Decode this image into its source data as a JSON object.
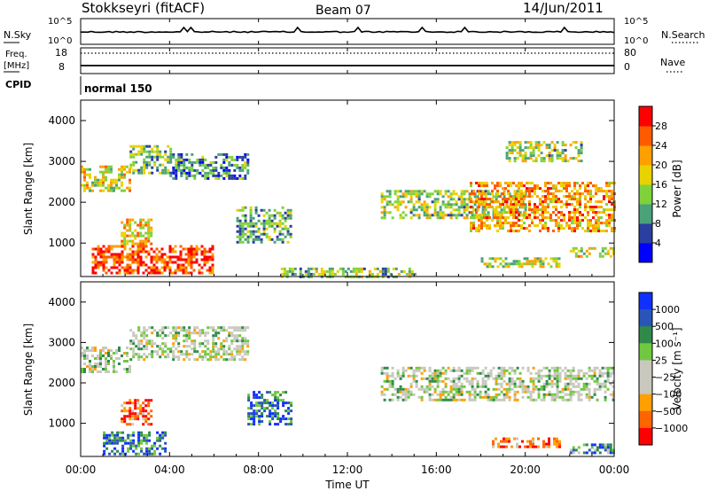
{
  "header": {
    "station": "Stokkseyri (fitACF)",
    "beam": "Beam 07",
    "date": "14/Jun/2011"
  },
  "status_panels": {
    "nsky_label": "N.Sky",
    "nsky_ticks": [
      "10^5",
      "10^0"
    ],
    "nsearch_label": "N.Search",
    "nsearch_ticks": [
      "10^5",
      "10^0"
    ],
    "freq_label_1": "Freq.",
    "freq_label_2": "[MHz]",
    "freq_ticks": [
      "18",
      "8"
    ],
    "nave_label": "Nave",
    "nave_ticks": [
      "80",
      "0"
    ],
    "cpid_label": "CPID",
    "cpid_value": "normal 150"
  },
  "chart_data": [
    {
      "type": "heatmap",
      "name": "power",
      "ylabel": "Slant Range [km]",
      "yticks": [
        1000,
        2000,
        3000,
        4000
      ],
      "ylim": [
        180,
        4500
      ],
      "xlim_hours": [
        0,
        24
      ],
      "colorbar": {
        "label": "Power [dB]",
        "ticks": [
          "4",
          "8",
          "12",
          "16",
          "20",
          "24",
          "28"
        ],
        "colors": [
          "#0000ff",
          "#2a3f9f",
          "#4aa27a",
          "#7fd23a",
          "#e8d200",
          "#ffa000",
          "#ff5a00",
          "#ff0000"
        ]
      },
      "regions": [
        {
          "t": [
            0.0,
            2.2
          ],
          "r": [
            2300,
            2900
          ],
          "level": 0.55
        },
        {
          "t": [
            2.2,
            4.0
          ],
          "r": [
            2700,
            3400
          ],
          "level": 0.4
        },
        {
          "t": [
            4.0,
            7.5
          ],
          "r": [
            2600,
            3200
          ],
          "level": 0.3
        },
        {
          "t": [
            7.0,
            9.5
          ],
          "r": [
            1000,
            1900
          ],
          "level": 0.35
        },
        {
          "t": [
            0.5,
            6.0
          ],
          "r": [
            250,
            950
          ],
          "level": 0.85
        },
        {
          "t": [
            1.8,
            3.2
          ],
          "r": [
            1000,
            1600
          ],
          "level": 0.6
        },
        {
          "t": [
            9.0,
            15.0
          ],
          "r": [
            200,
            400
          ],
          "level": 0.45
        },
        {
          "t": [
            13.5,
            20.0
          ],
          "r": [
            1600,
            2300
          ],
          "level": 0.45
        },
        {
          "t": [
            17.5,
            24.0
          ],
          "r": [
            1300,
            2500
          ],
          "level": 0.7
        },
        {
          "t": [
            19.0,
            22.5
          ],
          "r": [
            3000,
            3500
          ],
          "level": 0.45
        },
        {
          "t": [
            18.0,
            21.5
          ],
          "r": [
            450,
            650
          ],
          "level": 0.5
        },
        {
          "t": [
            22.0,
            24.0
          ],
          "r": [
            700,
            900
          ],
          "level": 0.55
        }
      ]
    },
    {
      "type": "heatmap",
      "name": "velocity",
      "ylabel": "Slant Range [km]",
      "yticks": [
        1000,
        2000,
        3000,
        4000
      ],
      "ylim": [
        180,
        4500
      ],
      "xlim_hours": [
        0,
        24
      ],
      "xticks": [
        "00:00",
        "04:00",
        "08:00",
        "12:00",
        "16:00",
        "20:00",
        "00:00"
      ],
      "xlabel": "Time UT",
      "colorbar": {
        "label": "Velocity [m s⁻¹]",
        "ticks": [
          "1000",
          "500",
          "100",
          "25",
          "−25",
          "−100",
          "−500",
          "−1000"
        ],
        "colors": [
          "#1030ff",
          "#2a55b8",
          "#2f8a4a",
          "#70c840",
          "#c8c8be",
          "#c8c8be",
          "#ffa000",
          "#ff6400",
          "#ff0000"
        ]
      },
      "regions": [
        {
          "t": [
            0.0,
            2.2
          ],
          "r": [
            2300,
            2900
          ],
          "level": 0.5
        },
        {
          "t": [
            2.2,
            7.5
          ],
          "r": [
            2600,
            3400
          ],
          "level": 0.5
        },
        {
          "t": [
            1.0,
            3.8
          ],
          "r": [
            250,
            800
          ],
          "level": 0.2
        },
        {
          "t": [
            1.8,
            3.2
          ],
          "r": [
            1000,
            1600
          ],
          "level": 0.85
        },
        {
          "t": [
            7.5,
            9.5
          ],
          "r": [
            1000,
            1800
          ],
          "level": 0.2
        },
        {
          "t": [
            13.5,
            24.0
          ],
          "r": [
            1600,
            2400
          ],
          "level": 0.5
        },
        {
          "t": [
            18.5,
            21.5
          ],
          "r": [
            450,
            650
          ],
          "level": 0.8
        },
        {
          "t": [
            22.0,
            24.0
          ],
          "r": [
            300,
            500
          ],
          "level": 0.25
        }
      ]
    }
  ]
}
